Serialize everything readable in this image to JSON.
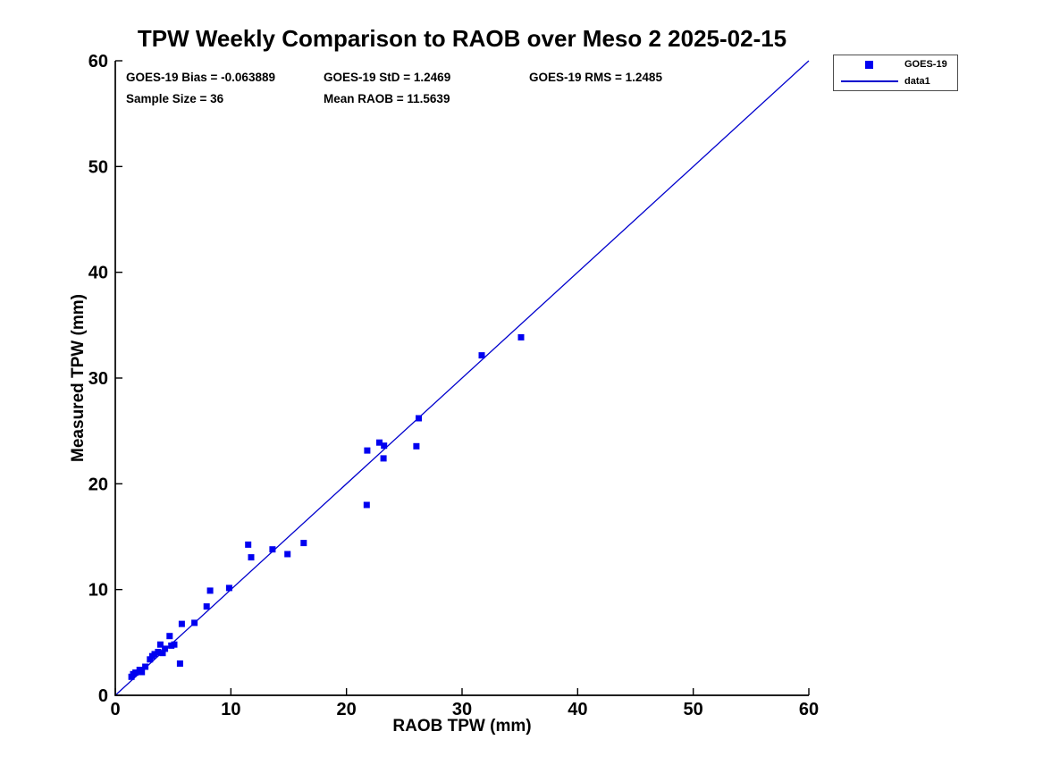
{
  "title": "TPW Weekly Comparison to RAOB over Meso 2 2025-02-15",
  "stats": {
    "bias": "GOES-19 Bias = -0.063889",
    "std": "GOES-19 StD = 1.2469",
    "rms": "GOES-19 RMS = 1.2485",
    "sample_size": "Sample Size = 36",
    "mean_raob": "Mean RAOB = 11.5639"
  },
  "legend": {
    "marker_label": "GOES-19",
    "line_label": "data1"
  },
  "colors": {
    "marker": "#0000f0",
    "line": "#0000cd",
    "axis": "#000000",
    "text": "#000000"
  },
  "chart_data": {
    "type": "scatter",
    "title": "TPW Weekly Comparison to RAOB over Meso 2 2025-02-15",
    "xlabel": "RAOB TPW (mm)",
    "ylabel": "Measured TPW (mm)",
    "xlim": [
      0,
      60
    ],
    "ylim": [
      0,
      60
    ],
    "xticks": [
      0,
      10,
      20,
      30,
      40,
      50,
      60
    ],
    "yticks": [
      0,
      10,
      20,
      30,
      40,
      50,
      60
    ],
    "grid": false,
    "legend_position": "top-right-outside",
    "annotations": [
      "GOES-19 Bias = -0.063889",
      "GOES-19 StD = 1.2469",
      "GOES-19 RMS = 1.2485",
      "Sample Size = 36",
      "Mean RAOB = 11.5639"
    ],
    "series": [
      {
        "name": "GOES-19",
        "type": "scatter",
        "marker": "square",
        "color": "#0000f0",
        "points": [
          [
            1.4,
            1.75
          ],
          [
            1.55,
            2.0
          ],
          [
            1.75,
            2.15
          ],
          [
            2.1,
            2.4
          ],
          [
            2.3,
            2.2
          ],
          [
            2.6,
            2.7
          ],
          [
            3.0,
            3.4
          ],
          [
            3.2,
            3.7
          ],
          [
            3.4,
            3.9
          ],
          [
            3.7,
            4.1
          ],
          [
            3.9,
            4.8
          ],
          [
            4.1,
            4.0
          ],
          [
            4.3,
            4.4
          ],
          [
            4.7,
            5.6
          ],
          [
            4.85,
            4.7
          ],
          [
            5.1,
            4.8
          ],
          [
            5.6,
            3.0
          ],
          [
            5.75,
            6.75
          ],
          [
            6.85,
            6.85
          ],
          [
            7.9,
            8.4
          ],
          [
            8.2,
            9.9
          ],
          [
            9.85,
            10.15
          ],
          [
            11.5,
            14.25
          ],
          [
            11.75,
            13.05
          ],
          [
            13.6,
            13.8
          ],
          [
            14.9,
            13.35
          ],
          [
            16.3,
            14.4
          ],
          [
            21.75,
            18.0
          ],
          [
            21.8,
            23.15
          ],
          [
            22.85,
            23.9
          ],
          [
            23.25,
            23.6
          ],
          [
            23.2,
            22.4
          ],
          [
            26.05,
            23.55
          ],
          [
            26.25,
            26.2
          ],
          [
            31.7,
            32.15
          ],
          [
            35.1,
            33.85
          ]
        ]
      },
      {
        "name": "data1",
        "type": "line",
        "color": "#0000cd",
        "points": [
          [
            0,
            0
          ],
          [
            60,
            60
          ]
        ]
      }
    ]
  }
}
